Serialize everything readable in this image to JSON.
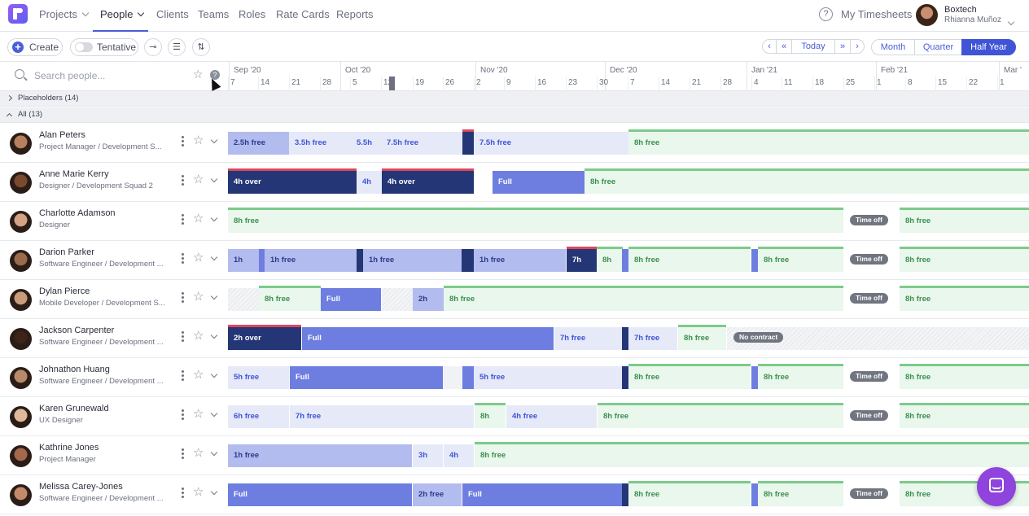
{
  "nav": {
    "projects": "Projects",
    "people": "People",
    "clients": "Clients",
    "teams": "Teams",
    "roles": "Roles",
    "rate_cards": "Rate Cards",
    "reports": "Reports",
    "my_timesheets": "My Timesheets",
    "account_name": "Boxtech",
    "user_name": "Rhianna Muñoz"
  },
  "toolbar": {
    "create": "Create",
    "tentative": "Tentative",
    "today": "Today",
    "views": [
      "Month",
      "Quarter",
      "Half Year"
    ],
    "active_view": "Half Year"
  },
  "search": {
    "placeholder": "Search people..."
  },
  "timeline": {
    "months": [
      "Sep '20",
      "Oct '20",
      "Nov '20",
      "Dec '20",
      "Jan '21",
      "Feb '21",
      "Mar '"
    ],
    "days": [
      "7",
      "14",
      "21",
      "28",
      "5",
      "12",
      "19",
      "26",
      "2",
      "9",
      "16",
      "23",
      "30",
      "7",
      "14",
      "21",
      "28",
      "4",
      "11",
      "18",
      "25",
      "1",
      "8",
      "15",
      "22",
      "1"
    ]
  },
  "groups": {
    "placeholders": "Placeholders (14)",
    "all": "All (13)"
  },
  "colors": {
    "accent": "#3f55d6",
    "light_free": "#e6e9f8",
    "mid_free": "#b3bcee",
    "full": "#6d7ee0",
    "over": "#253676",
    "green_free": "#e9f7ec",
    "green_text": "#3d8f4f",
    "fab": "#8e44dd"
  },
  "people": [
    {
      "name": "Alan Peters",
      "role": "Project Manager / Development S...",
      "segments": [
        {
          "label": "2.5h free",
          "type": "mid"
        },
        {
          "label": "3.5h free",
          "type": "light"
        },
        {
          "label": "5.5h",
          "type": "light"
        },
        {
          "label": "7.5h free",
          "type": "light"
        },
        {
          "label": "",
          "type": "over"
        },
        {
          "label": "7.5h free",
          "type": "light"
        },
        {
          "label": "8h free",
          "type": "green"
        }
      ]
    },
    {
      "name": "Anne Marie Kerry",
      "role": "Designer / Development Squad 2",
      "segments": [
        {
          "label": "4h over",
          "type": "over"
        },
        {
          "label": "4h",
          "type": "light"
        },
        {
          "label": "4h over",
          "type": "over"
        },
        {
          "label": "Full",
          "type": "full"
        },
        {
          "label": "8h free",
          "type": "green"
        }
      ]
    },
    {
      "name": "Charlotte Adamson",
      "role": "Designer",
      "segments": [
        {
          "label": "8h free",
          "type": "green"
        },
        {
          "label": "Time off",
          "type": "timeoff"
        },
        {
          "label": "8h free",
          "type": "green"
        }
      ]
    },
    {
      "name": "Darion Parker",
      "role": "Software Engineer / Development ...",
      "segments": [
        {
          "label": "1h",
          "type": "mid"
        },
        {
          "label": "1h free",
          "type": "mid"
        },
        {
          "label": "1h free",
          "type": "mid"
        },
        {
          "label": "1h free",
          "type": "mid"
        },
        {
          "label": "7h",
          "type": "over"
        },
        {
          "label": "8h",
          "type": "green"
        },
        {
          "label": "8h free",
          "type": "green"
        },
        {
          "label": "8h free",
          "type": "green"
        },
        {
          "label": "Time off",
          "type": "timeoff"
        },
        {
          "label": "8h free",
          "type": "green"
        }
      ]
    },
    {
      "name": "Dylan Pierce",
      "role": "Mobile Developer / Development S...",
      "segments": [
        {
          "label": "8h free",
          "type": "green"
        },
        {
          "label": "Full",
          "type": "full"
        },
        {
          "label": "2h",
          "type": "mid"
        },
        {
          "label": "8h free",
          "type": "green"
        },
        {
          "label": "Time off",
          "type": "timeoff"
        },
        {
          "label": "8h free",
          "type": "green"
        }
      ]
    },
    {
      "name": "Jackson Carpenter",
      "role": "Software Engineer / Development ...",
      "segments": [
        {
          "label": "2h over",
          "type": "over"
        },
        {
          "label": "Full",
          "type": "full"
        },
        {
          "label": "7h free",
          "type": "light"
        },
        {
          "label": "7h free",
          "type": "light"
        },
        {
          "label": "8h free",
          "type": "green"
        },
        {
          "label": "No contract",
          "type": "timeoff"
        }
      ]
    },
    {
      "name": "Johnathon Huang",
      "role": "Software Engineer / Development ...",
      "segments": [
        {
          "label": "5h free",
          "type": "light"
        },
        {
          "label": "Full",
          "type": "full"
        },
        {
          "label": "5h free",
          "type": "light"
        },
        {
          "label": "8h free",
          "type": "green"
        },
        {
          "label": "8h free",
          "type": "green"
        },
        {
          "label": "Time off",
          "type": "timeoff"
        },
        {
          "label": "8h free",
          "type": "green"
        }
      ]
    },
    {
      "name": "Karen Grunewald",
      "role": "UX Designer",
      "segments": [
        {
          "label": "6h free",
          "type": "light"
        },
        {
          "label": "7h free",
          "type": "light"
        },
        {
          "label": "8h",
          "type": "green"
        },
        {
          "label": "4h free",
          "type": "light"
        },
        {
          "label": "8h free",
          "type": "green"
        },
        {
          "label": "Time off",
          "type": "timeoff"
        },
        {
          "label": "8h free",
          "type": "green"
        }
      ]
    },
    {
      "name": "Kathrine Jones",
      "role": "Project Manager",
      "segments": [
        {
          "label": "1h free",
          "type": "mid"
        },
        {
          "label": "3h",
          "type": "light"
        },
        {
          "label": "4h",
          "type": "light"
        },
        {
          "label": "8h free",
          "type": "green"
        }
      ]
    },
    {
      "name": "Melissa Carey-Jones",
      "role": "Software Engineer / Development ...",
      "segments": [
        {
          "label": "Full",
          "type": "full"
        },
        {
          "label": "2h free",
          "type": "mid"
        },
        {
          "label": "Full",
          "type": "full"
        },
        {
          "label": "8h free",
          "type": "green"
        },
        {
          "label": "8h free",
          "type": "green"
        },
        {
          "label": "Time off",
          "type": "timeoff"
        },
        {
          "label": "8h free",
          "type": "green"
        }
      ]
    }
  ]
}
